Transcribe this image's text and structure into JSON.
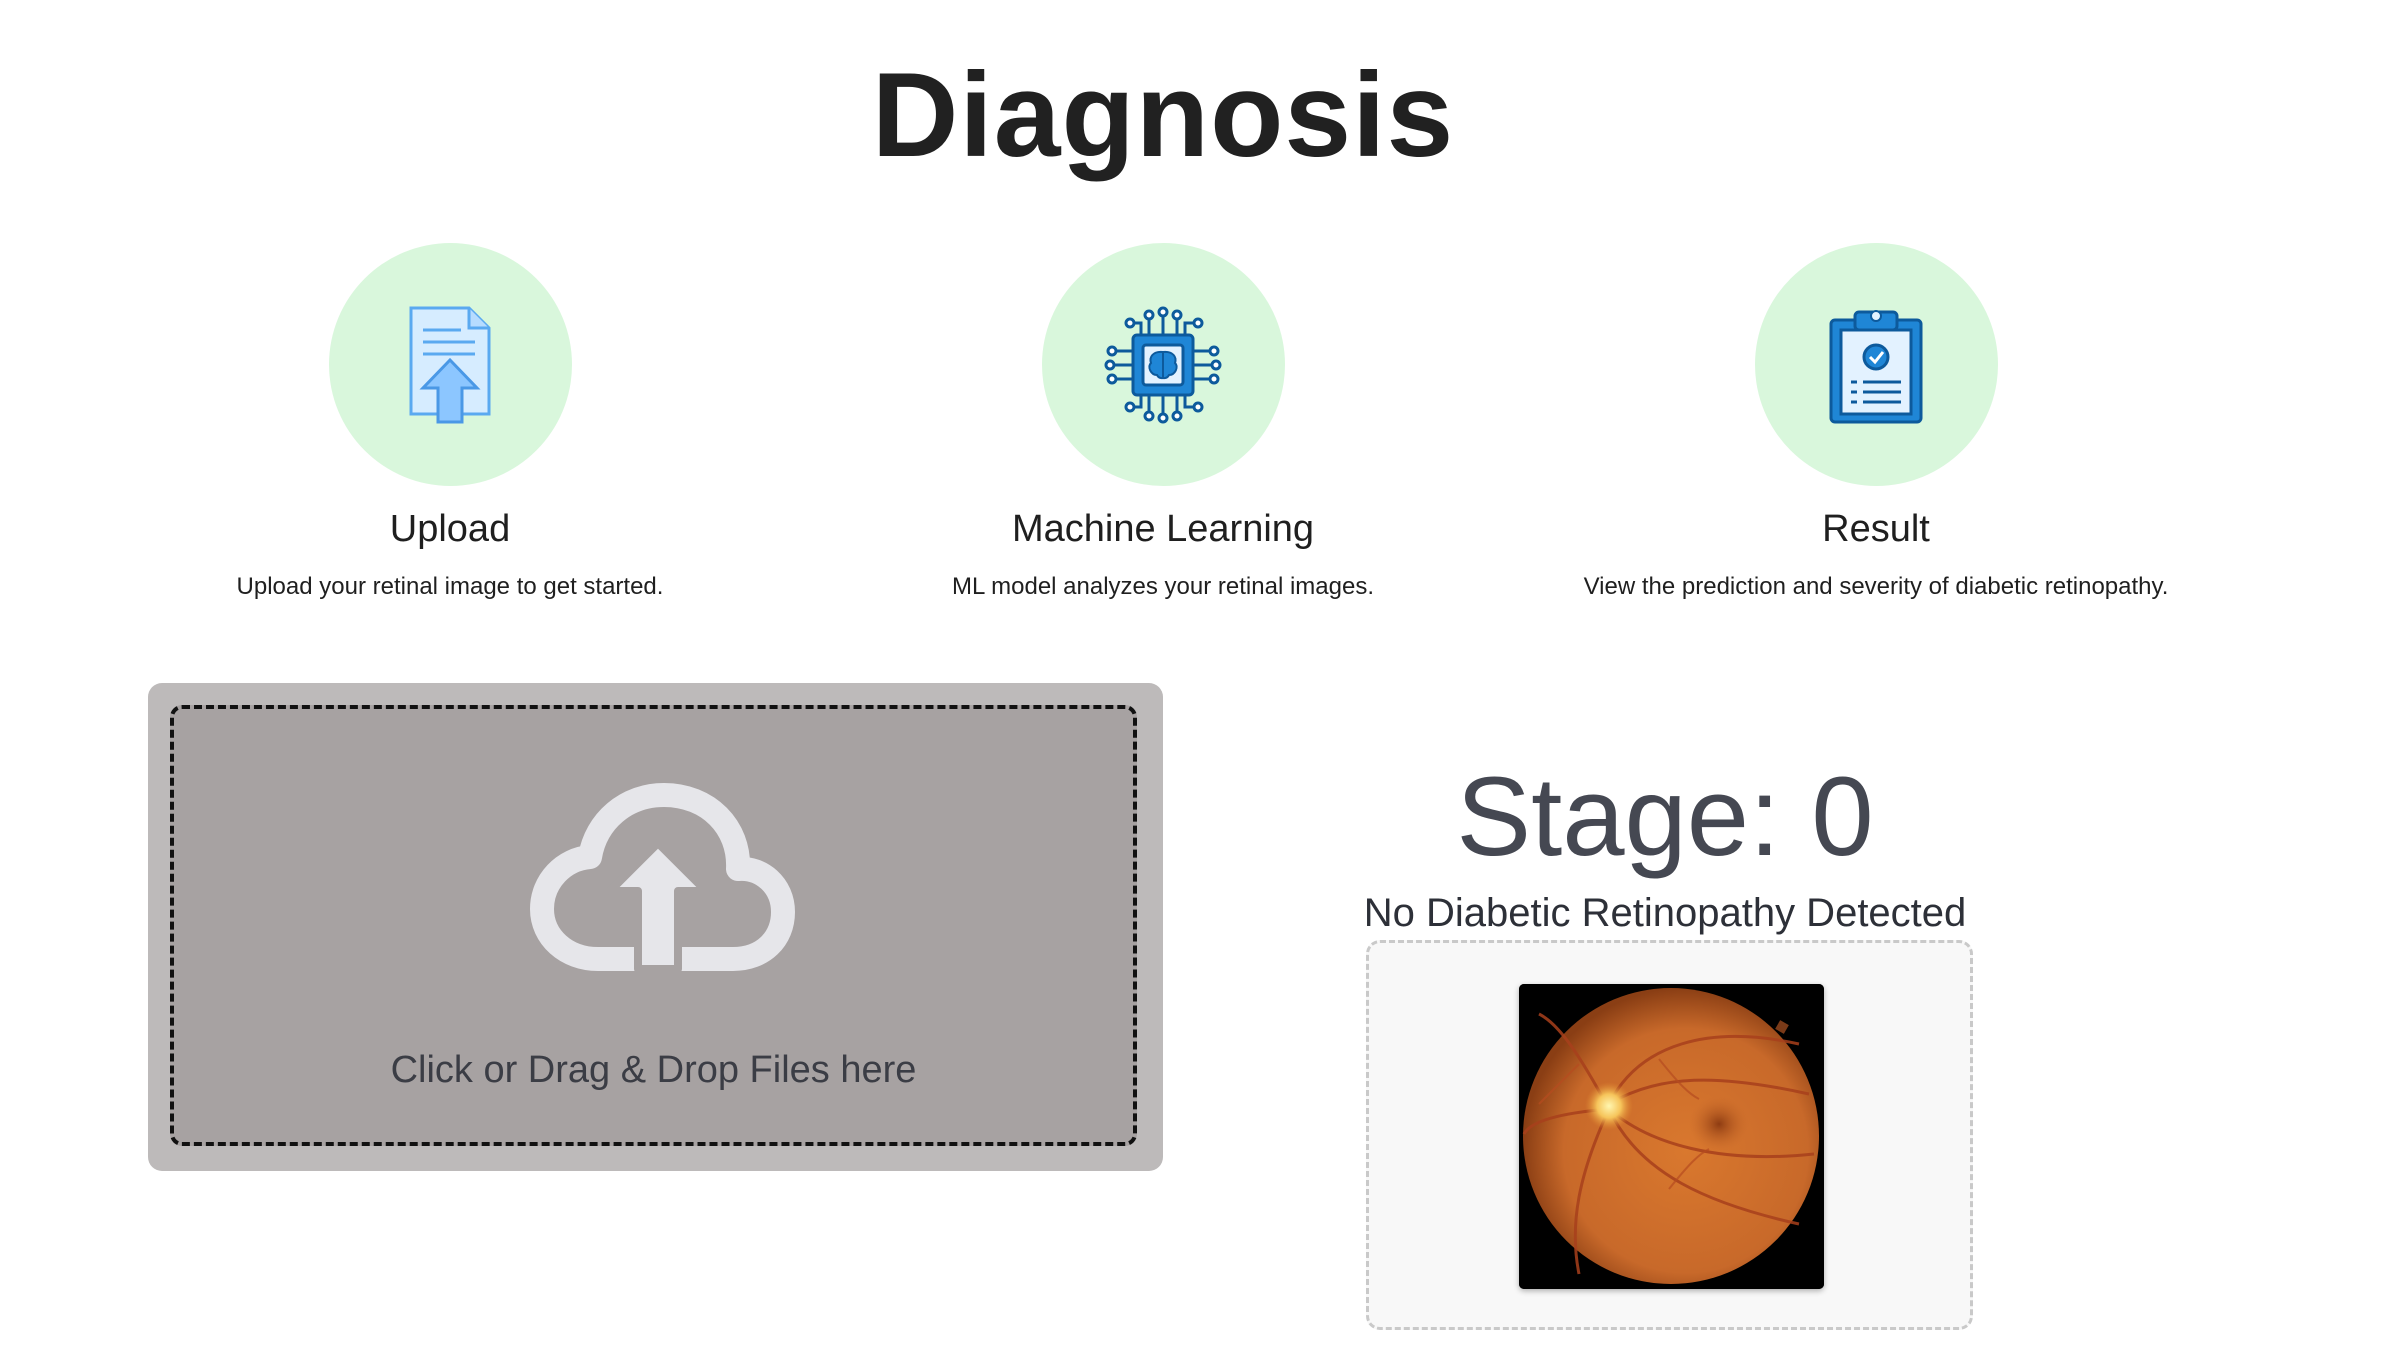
{
  "page": {
    "title": "Diagnosis"
  },
  "steps": [
    {
      "title": "Upload",
      "description": "Upload your retinal image to get started.",
      "icon": "upload-document-icon"
    },
    {
      "title": "Machine Learning",
      "description": "ML model analyzes your retinal images.",
      "icon": "ai-brain-chip-icon"
    },
    {
      "title": "Result",
      "description": "View the prediction and severity of diabetic retinopathy.",
      "icon": "clipboard-result-icon"
    }
  ],
  "upload": {
    "label": "Click or Drag & Drop Files here",
    "icon": "cloud-upload-icon"
  },
  "result": {
    "stage": "Stage: 0",
    "description": "No Diabetic Retinopathy Detected"
  },
  "colors": {
    "step_circle": "#d9f7dc",
    "upload_panel": "#bdbaba",
    "drop_zone": "#a7a2a2",
    "accent_blue": "#1f86d6"
  }
}
